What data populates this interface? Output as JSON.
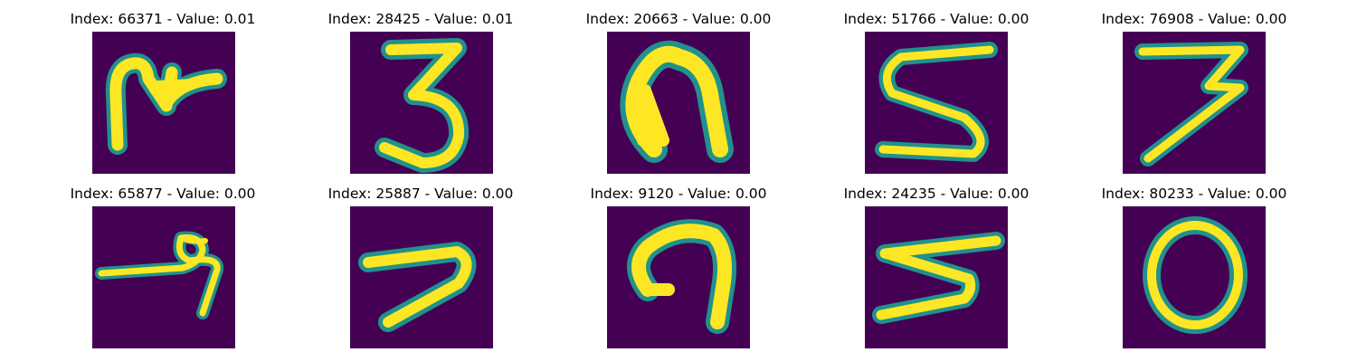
{
  "palette": {
    "background": "#440154",
    "edge": "#21918c",
    "stroke": "#fde725"
  },
  "panels": [
    {
      "title": "Index: 66371 - Value: 0.01",
      "glyph": "M"
    },
    {
      "title": "Index: 28425 - Value: 0.01",
      "glyph": "3"
    },
    {
      "title": "Index: 20663 - Value: 0.00",
      "glyph": "n"
    },
    {
      "title": "Index: 51766 - Value: 0.00",
      "glyph": "S"
    },
    {
      "title": "Index: 76908 - Value: 0.00",
      "glyph": "7"
    },
    {
      "title": "Index: 65877 - Value: 0.00",
      "glyph": "4"
    },
    {
      "title": "Index: 25887 - Value: 0.00",
      "glyph": "7"
    },
    {
      "title": "Index: 9120 - Value: 0.00",
      "glyph": "7"
    },
    {
      "title": "Index: 24235 - Value: 0.00",
      "glyph": "3"
    },
    {
      "title": "Index: 80233 - Value: 0.00",
      "glyph": "0"
    }
  ]
}
